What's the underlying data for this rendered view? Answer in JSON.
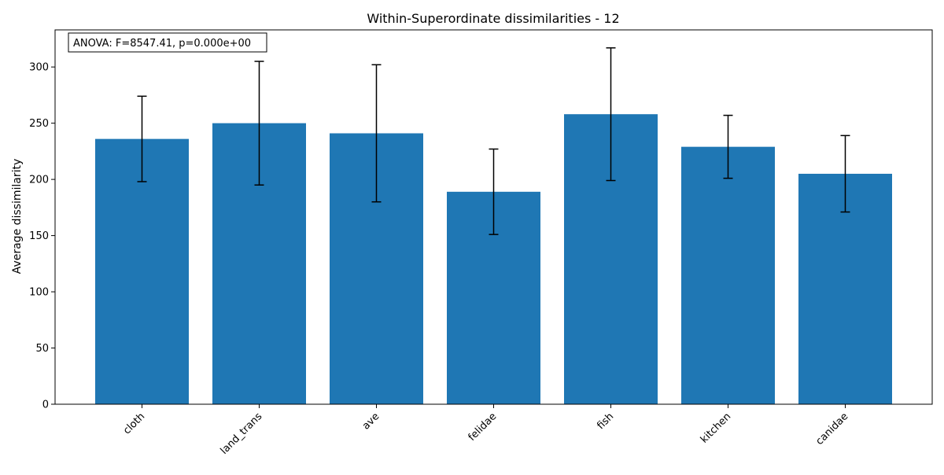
{
  "chart_data": {
    "type": "bar",
    "title": "Within-Superordinate dissimilarities - 12",
    "xlabel": "",
    "ylabel": "Average dissimilarity",
    "annotation": "ANOVA: F=8547.41, p=0.000e+00",
    "categories": [
      "cloth",
      "land_trans",
      "ave",
      "felidae",
      "fish",
      "kitchen",
      "canidae"
    ],
    "values": [
      236,
      250,
      241,
      189,
      258,
      229,
      205
    ],
    "errors": [
      38,
      55,
      61,
      38,
      59,
      28,
      34
    ],
    "ylim": [
      0,
      333
    ],
    "yticks": [
      "0",
      "50",
      "100",
      "150",
      "200",
      "250",
      "300"
    ],
    "grid": false,
    "colors": {
      "bar": "#1f77b4",
      "errorbar": "#000000",
      "axis": "#000000"
    }
  }
}
